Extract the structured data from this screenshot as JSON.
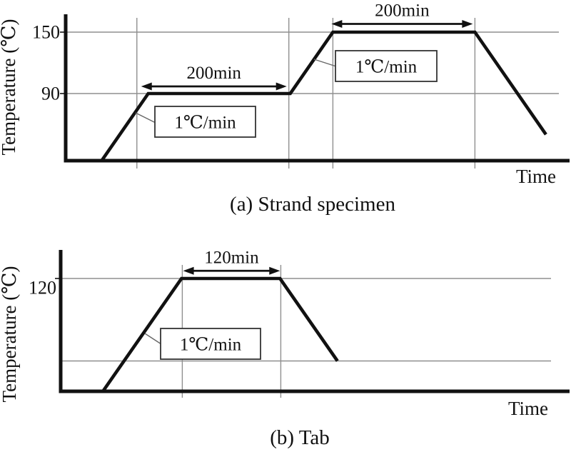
{
  "chart_data": [
    {
      "id": "strand",
      "type": "line",
      "caption": "(a) Strand specimen",
      "xlabel": "Time",
      "ylabel": "Temperature (℃)",
      "x_unit": "min",
      "y_unit": "℃",
      "yticks": [
        {
          "value": 150,
          "label": "150"
        },
        {
          "value": 90,
          "label": "90"
        }
      ],
      "profile": [
        {
          "t": 0,
          "temp": 25
        },
        {
          "t": 65,
          "temp": 90
        },
        {
          "t": 265,
          "temp": 90
        },
        {
          "t": 325,
          "temp": 150
        },
        {
          "t": 525,
          "temp": 150
        },
        {
          "t": 625,
          "temp": 50
        }
      ],
      "hold_arrows": [
        {
          "label": "200min",
          "t1": 55,
          "t2": 260,
          "temp": 97
        },
        {
          "label": "200min",
          "t1": 323,
          "t2": 522,
          "temp": 158
        }
      ],
      "rate_labels": [
        {
          "label": "1℃/min"
        },
        {
          "label": "1℃/min"
        }
      ],
      "grid": {
        "v_t": [
          49,
          263,
          325,
          525
        ],
        "h_temp": [
          150,
          90
        ]
      }
    },
    {
      "id": "tab",
      "type": "line",
      "caption": "(b) Tab",
      "xlabel": "Time",
      "ylabel": "Temperature (℃)",
      "x_unit": "min",
      "y_unit": "℃",
      "yticks": [
        {
          "value": 120,
          "label": "120"
        }
      ],
      "profile": [
        {
          "t": 0,
          "temp": 25
        },
        {
          "t": 95,
          "temp": 120
        },
        {
          "t": 215,
          "temp": 120
        },
        {
          "t": 285,
          "temp": 50
        }
      ],
      "hold_arrows": [
        {
          "label": "120min",
          "t1": 97,
          "t2": 215,
          "temp": 126.5
        }
      ],
      "rate_labels": [
        {
          "label": "1℃/min"
        }
      ],
      "grid": {
        "v_t": [
          96,
          216
        ],
        "h_temp": [
          120,
          50
        ]
      }
    }
  ]
}
